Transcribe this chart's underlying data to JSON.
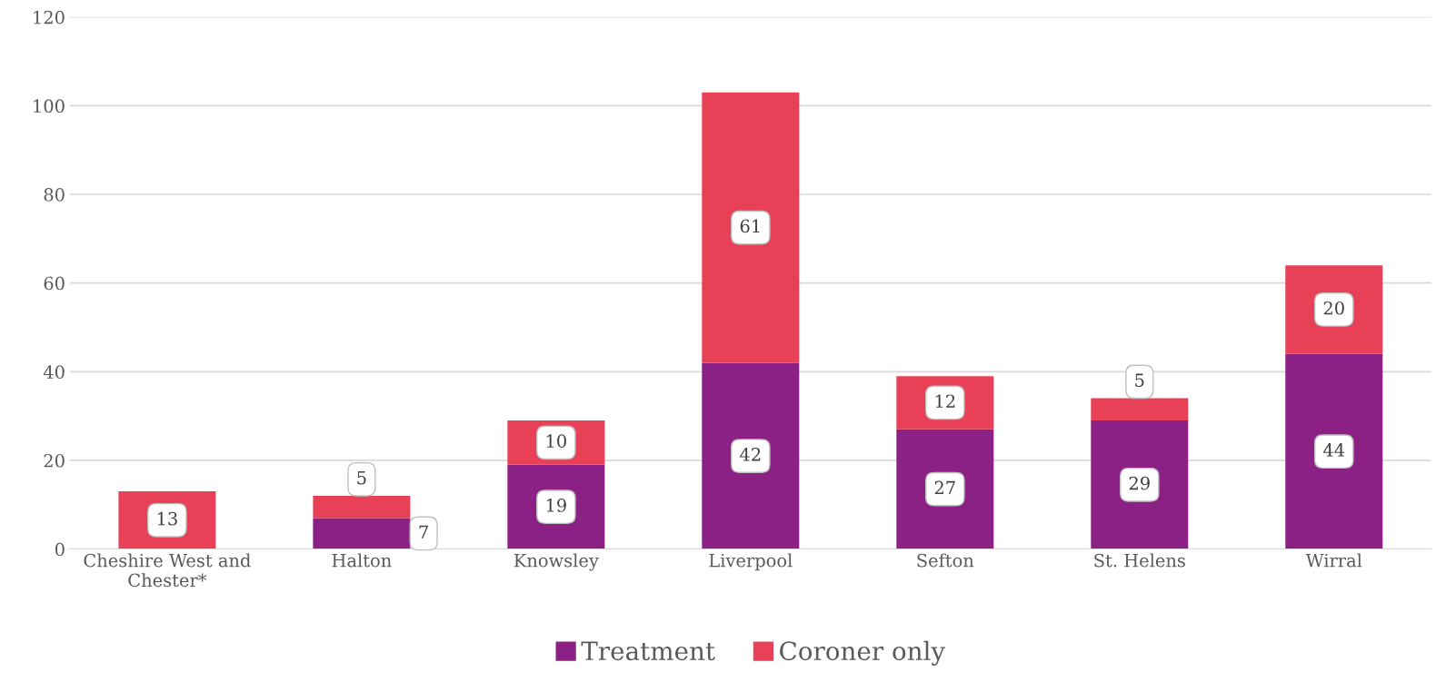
{
  "chart_data": {
    "type": "bar",
    "stacked": true,
    "categories": [
      "Cheshire West and\nChester*",
      "Halton",
      "Knowsley",
      "Liverpool",
      "Sefton",
      "St. Helens",
      "Wirral"
    ],
    "series": [
      {
        "name": "Treatment",
        "color": "#8b2085",
        "values": [
          0,
          7,
          19,
          42,
          27,
          29,
          44
        ],
        "value_labels": [
          null,
          "7",
          "19",
          "42",
          "27",
          "29",
          "44"
        ]
      },
      {
        "name": "Coroner only",
        "color": "#e84057",
        "values": [
          13,
          5,
          10,
          61,
          12,
          5,
          20
        ],
        "value_labels": [
          "13",
          "5",
          "10",
          "61",
          "12",
          "5",
          "20"
        ]
      }
    ],
    "ylim": [
      0,
      120
    ],
    "yticks": [
      0,
      20,
      40,
      60,
      80,
      100,
      120
    ],
    "grid": "y",
    "legend": "bottom"
  }
}
